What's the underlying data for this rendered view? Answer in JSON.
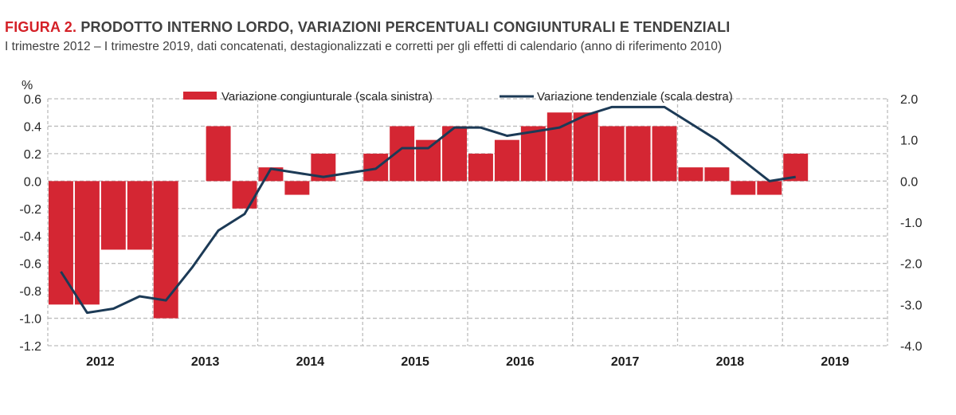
{
  "header": {
    "figure_label": "FIGURA 2.",
    "title": "PRODOTTO INTERNO LORDO, VARIAZIONI PERCENTUALI CONGIUNTURALI E TENDENZIALI",
    "subtitle": "I trimestre 2012 – I trimestre 2019, dati concatenati, destagionalizzati  e corretti per gli effetti di calendario (anno di riferimento 2010)"
  },
  "colors": {
    "bar": "#d42633",
    "line": "#1c3a56",
    "grid": "#bdbdbd",
    "accent": "#d42027"
  },
  "chart_data": {
    "type": "bar",
    "title": "PRODOTTO INTERNO LORDO, VARIAZIONI PERCENTUALI CONGIUNTURALI E TENDENZIALI",
    "unit_label": "%",
    "categories": [
      "2012Q1",
      "2012Q2",
      "2012Q3",
      "2012Q4",
      "2013Q1",
      "2013Q2",
      "2013Q3",
      "2013Q4",
      "2014Q1",
      "2014Q2",
      "2014Q3",
      "2014Q4",
      "2015Q1",
      "2015Q2",
      "2015Q3",
      "2015Q4",
      "2016Q1",
      "2016Q2",
      "2016Q3",
      "2016Q4",
      "2017Q1",
      "2017Q2",
      "2017Q3",
      "2017Q4",
      "2018Q1",
      "2018Q2",
      "2018Q3",
      "2018Q4",
      "2019Q1"
    ],
    "year_labels": [
      "2012",
      "2013",
      "2014",
      "2015",
      "2016",
      "2017",
      "2018",
      "2019"
    ],
    "series": [
      {
        "name": "Variazione congiunturale (scala sinistra)",
        "type": "bar",
        "axis": "left",
        "values": [
          -0.9,
          -0.9,
          -0.5,
          -0.5,
          -1.0,
          0.0,
          0.4,
          -0.2,
          0.1,
          -0.1,
          0.2,
          0.0,
          0.2,
          0.4,
          0.3,
          0.4,
          0.2,
          0.3,
          0.4,
          0.5,
          0.5,
          0.4,
          0.4,
          0.4,
          0.1,
          0.1,
          -0.1,
          -0.1,
          0.2
        ]
      },
      {
        "name": "Variazione tendenziale (scala destra)",
        "type": "line",
        "axis": "right",
        "values": [
          -2.2,
          -3.2,
          -3.1,
          -2.8,
          -2.9,
          -2.1,
          -1.2,
          -0.8,
          0.3,
          0.2,
          0.1,
          0.2,
          0.3,
          0.8,
          0.8,
          1.3,
          1.3,
          1.1,
          1.2,
          1.3,
          1.6,
          1.8,
          1.8,
          1.8,
          1.4,
          1.0,
          0.5,
          0.0,
          0.1
        ]
      }
    ],
    "left_axis": {
      "ylim": [
        -1.2,
        0.6
      ],
      "ticks": [
        "0.6",
        "0.4",
        "0.2",
        "0.0",
        "-0.2",
        "-0.4",
        "-0.6",
        "-0.8",
        "-1.0",
        "-1.2"
      ]
    },
    "right_axis": {
      "ylim": [
        -4.0,
        2.0
      ],
      "ticks": [
        "2.0",
        "1.0",
        "0.0",
        "-1.0",
        "-2.0",
        "-3.0",
        "-4.0"
      ]
    },
    "grid": true,
    "legend_position": "top"
  }
}
